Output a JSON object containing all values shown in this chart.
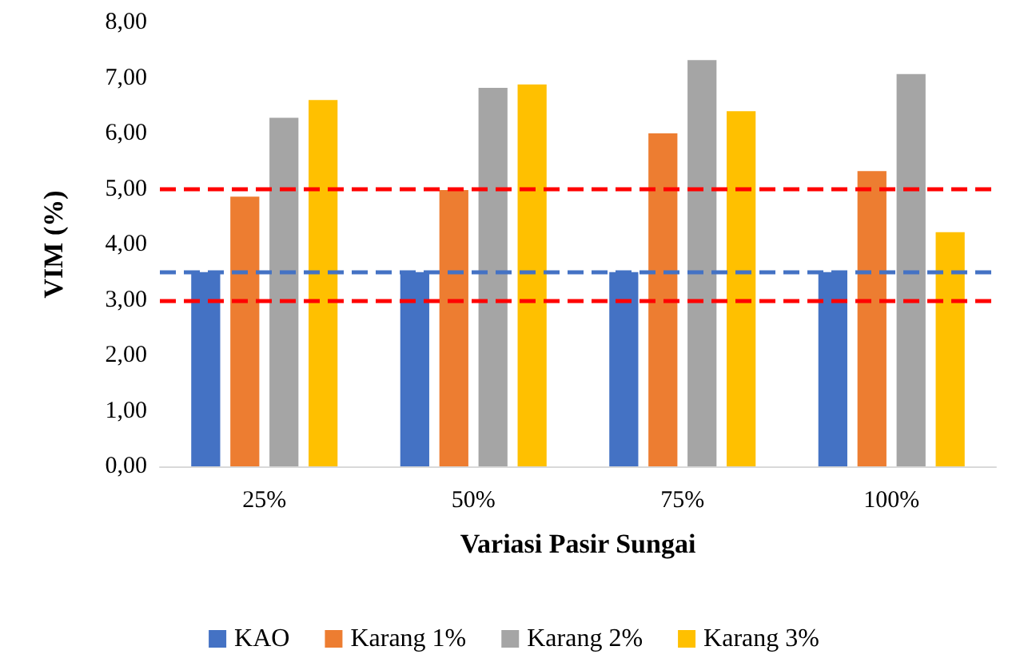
{
  "chart_data": {
    "type": "bar",
    "xlabel": "Variasi Pasir Sungai",
    "ylabel": "VIM (%)",
    "categories": [
      "25%",
      "50%",
      "75%",
      "100%"
    ],
    "series": [
      {
        "name": "KAO",
        "color": "#4472c4",
        "values": [
          3.5,
          3.5,
          3.5,
          3.5
        ]
      },
      {
        "name": "Karang 1%",
        "color": "#ed7d31",
        "values": [
          4.86,
          4.98,
          6.0,
          5.32
        ]
      },
      {
        "name": "Karang 2%",
        "color": "#a5a5a5",
        "values": [
          6.28,
          6.82,
          7.32,
          7.07
        ]
      },
      {
        "name": "Karang 3%",
        "color": "#ffc000",
        "values": [
          6.6,
          6.88,
          6.4,
          4.22
        ]
      }
    ],
    "ylim": [
      0,
      8
    ],
    "yticks": [
      {
        "value": 0,
        "label": "0,00"
      },
      {
        "value": 1,
        "label": "1,00"
      },
      {
        "value": 2,
        "label": "2,00"
      },
      {
        "value": 3,
        "label": "3,00"
      },
      {
        "value": 4,
        "label": "4,00"
      },
      {
        "value": 5,
        "label": "5,00"
      },
      {
        "value": 6,
        "label": "6,00"
      },
      {
        "value": 7,
        "label": "7,00"
      },
      {
        "value": 8,
        "label": "8,00"
      }
    ],
    "ref_lines": [
      {
        "axis": "y",
        "value": 3.5,
        "color": "#4472c4",
        "line_style": "dashed"
      },
      {
        "axis": "y",
        "value": 5,
        "color": "#ff0000",
        "line_style": "dashed"
      },
      {
        "axis": "y",
        "value": 3,
        "color": "#ff0000",
        "line_style": "dashed"
      }
    ],
    "grid": false,
    "legend": "bottom"
  }
}
